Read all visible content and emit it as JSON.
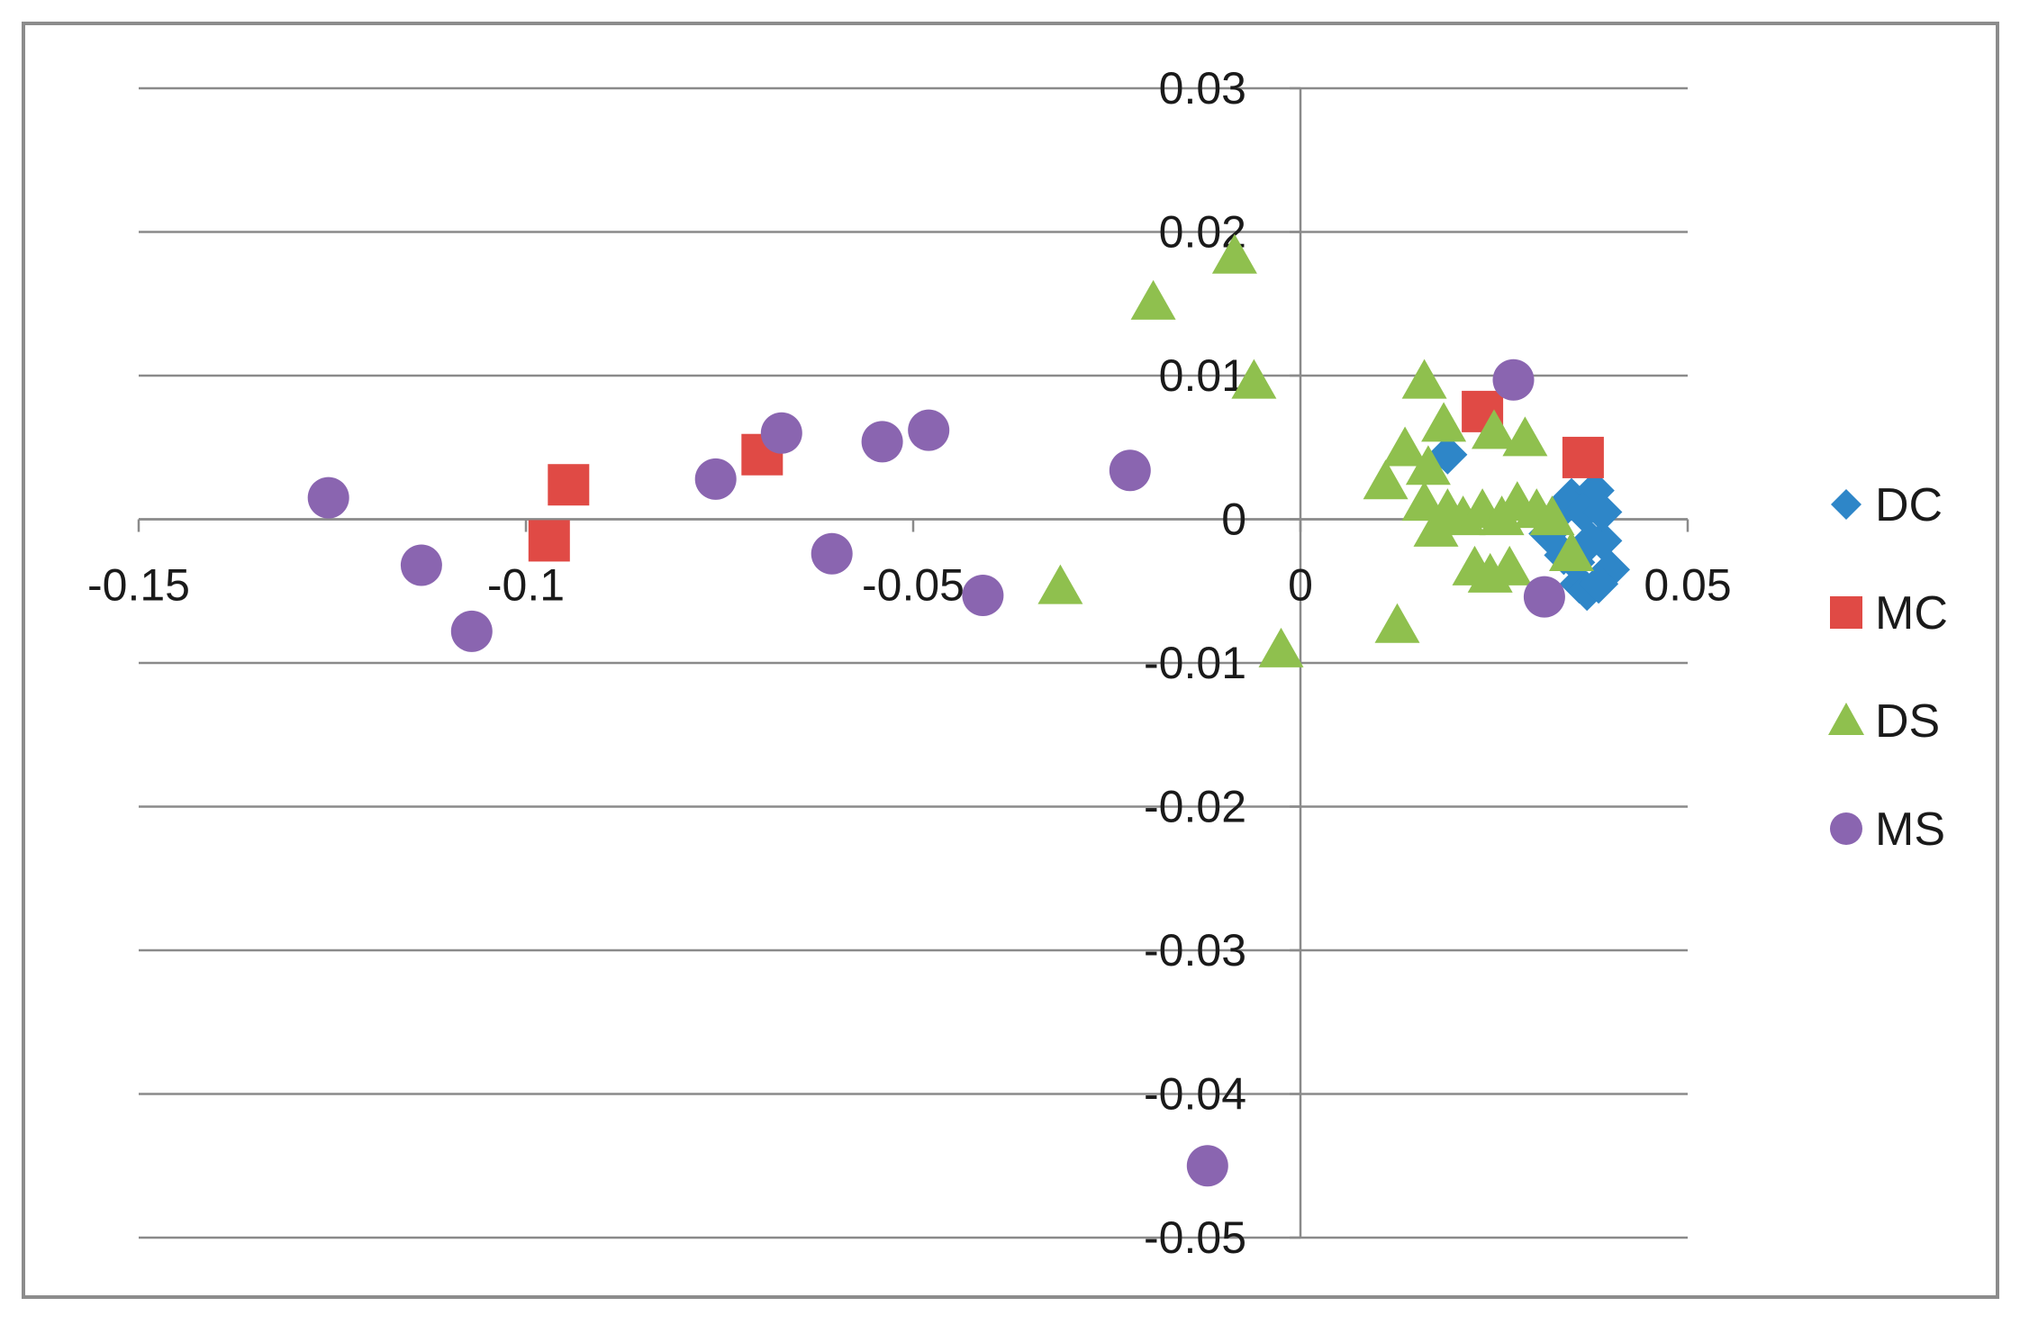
{
  "chart_data": {
    "type": "scatter",
    "title": "",
    "xlabel": "",
    "ylabel": "",
    "xlim": [
      -0.15,
      0.05
    ],
    "ylim": [
      -0.05,
      0.03
    ],
    "grid": "horizontal",
    "legend_position": "right",
    "x_ticks": [
      {
        "value": -0.15,
        "label": "-0.15"
      },
      {
        "value": -0.1,
        "label": "-0.1"
      },
      {
        "value": -0.05,
        "label": "-0.05"
      },
      {
        "value": 0,
        "label": "0"
      },
      {
        "value": 0.05,
        "label": "0.05"
      }
    ],
    "y_ticks": [
      {
        "value": 0.03,
        "label": "0.03"
      },
      {
        "value": 0.02,
        "label": "0.02"
      },
      {
        "value": 0.01,
        "label": "0.01"
      },
      {
        "value": 0,
        "label": "0"
      },
      {
        "value": -0.01,
        "label": "-0.01"
      },
      {
        "value": -0.02,
        "label": "-0.02"
      },
      {
        "value": -0.03,
        "label": "-0.03"
      },
      {
        "value": -0.04,
        "label": "-0.04"
      },
      {
        "value": -0.05,
        "label": "-0.05"
      }
    ],
    "series": [
      {
        "name": "DC",
        "marker": "diamond",
        "color": "#2e86c8",
        "points": [
          {
            "x": 0.019,
            "y": 0.0045
          },
          {
            "x": 0.032,
            "y": -0.001
          },
          {
            "x": 0.0335,
            "y": 0.0005
          },
          {
            "x": 0.034,
            "y": -0.0025
          },
          {
            "x": 0.035,
            "y": 0.0015
          },
          {
            "x": 0.036,
            "y": -0.0045
          },
          {
            "x": 0.037,
            "y": -0.005
          },
          {
            "x": 0.038,
            "y": 0.002
          },
          {
            "x": 0.039,
            "y": -0.0015
          },
          {
            "x": 0.04,
            "y": -0.0035
          },
          {
            "x": 0.0365,
            "y": 0.0005
          },
          {
            "x": 0.0375,
            "y": -0.0015
          },
          {
            "x": 0.039,
            "y": 0.0005
          },
          {
            "x": 0.0355,
            "y": -0.003
          },
          {
            "x": 0.0385,
            "y": -0.0045
          }
        ]
      },
      {
        "name": "MC",
        "marker": "square",
        "color": "#e04a45",
        "points": [
          {
            "x": -0.0945,
            "y": 0.0024
          },
          {
            "x": -0.097,
            "y": -0.0015
          },
          {
            "x": -0.0695,
            "y": 0.0045
          },
          {
            "x": 0.0235,
            "y": 0.0075
          },
          {
            "x": 0.0365,
            "y": 0.0043
          }
        ]
      },
      {
        "name": "DS",
        "marker": "triangle",
        "color": "#8fc04e",
        "points": [
          {
            "x": -0.0085,
            "y": 0.0182
          },
          {
            "x": -0.019,
            "y": 0.015
          },
          {
            "x": -0.006,
            "y": 0.0095
          },
          {
            "x": -0.031,
            "y": -0.0048
          },
          {
            "x": -0.0025,
            "y": -0.0092
          },
          {
            "x": 0.0125,
            "y": -0.0075
          },
          {
            "x": 0.016,
            "y": 0.0095
          },
          {
            "x": 0.0185,
            "y": 0.0065
          },
          {
            "x": 0.0135,
            "y": 0.0048
          },
          {
            "x": 0.011,
            "y": 0.0025
          },
          {
            "x": 0.0165,
            "y": 0.0035
          },
          {
            "x": 0.025,
            "y": 0.006
          },
          {
            "x": 0.029,
            "y": 0.0055
          },
          {
            "x": 0.016,
            "y": 0.001
          },
          {
            "x": 0.019,
            "y": 0.0005
          },
          {
            "x": 0.021,
            "y": 0
          },
          {
            "x": 0.0235,
            "y": 0.0005
          },
          {
            "x": 0.026,
            "y": 0
          },
          {
            "x": 0.028,
            "y": 0.001
          },
          {
            "x": 0.0305,
            "y": 0.0005
          },
          {
            "x": 0.0325,
            "y": 0
          },
          {
            "x": 0.0175,
            "y": -0.0008
          },
          {
            "x": 0.0225,
            "y": -0.0035
          },
          {
            "x": 0.0245,
            "y": -0.004
          },
          {
            "x": 0.027,
            "y": -0.0035
          },
          {
            "x": 0.035,
            "y": -0.0025
          }
        ]
      },
      {
        "name": "MS",
        "marker": "circle",
        "color": "#8a65b0",
        "points": [
          {
            "x": -0.1255,
            "y": 0.0015
          },
          {
            "x": -0.1135,
            "y": -0.0032
          },
          {
            "x": -0.107,
            "y": -0.0078
          },
          {
            "x": -0.0755,
            "y": 0.0028
          },
          {
            "x": -0.067,
            "y": 0.006
          },
          {
            "x": -0.0605,
            "y": -0.0024
          },
          {
            "x": -0.054,
            "y": 0.0054
          },
          {
            "x": -0.048,
            "y": 0.0062
          },
          {
            "x": -0.041,
            "y": -0.0053
          },
          {
            "x": -0.022,
            "y": 0.0034
          },
          {
            "x": -0.012,
            "y": -0.045
          },
          {
            "x": 0.0275,
            "y": 0.0097
          },
          {
            "x": 0.0315,
            "y": -0.0054
          }
        ]
      }
    ]
  }
}
